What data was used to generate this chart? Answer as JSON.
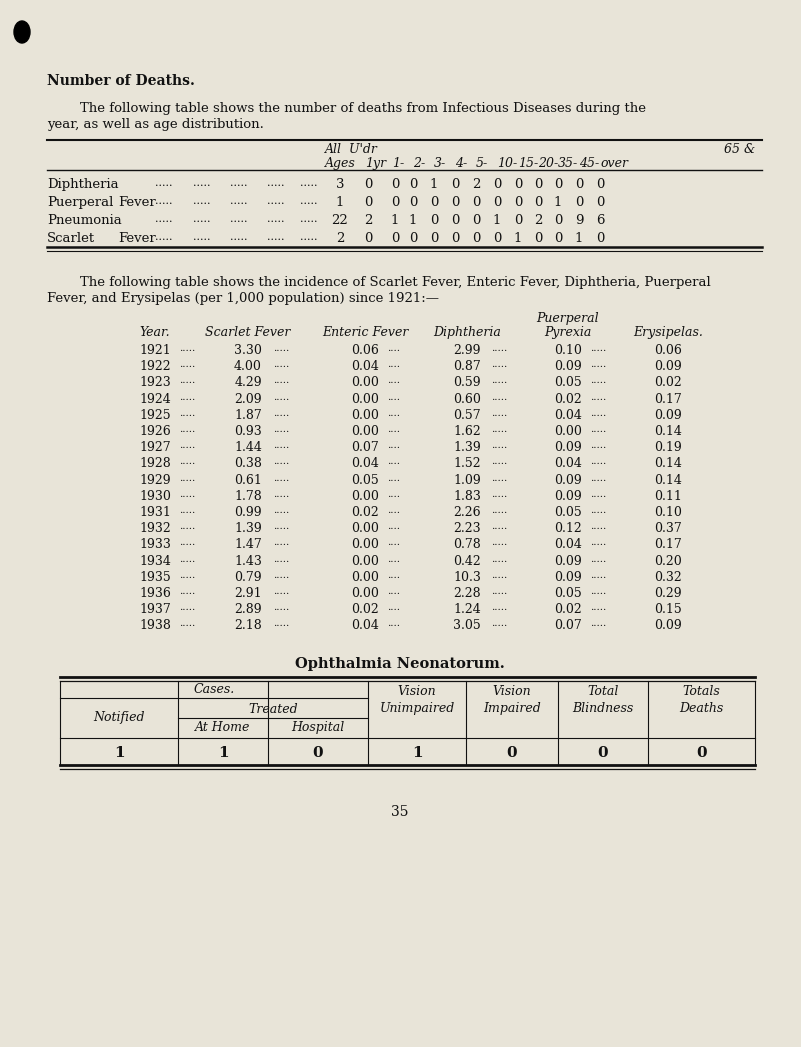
{
  "bg_color": "#e8e4d8",
  "title": "Number of Deaths.",
  "page_number": "35",
  "para1_line1": "The following table shows the number of deaths from Infectious Diseases during the",
  "para1_line2": "year, as well as age distribution.",
  "table1": {
    "rows": [
      {
        "label": "Diphtheria",
        "values": [
          3,
          0,
          0,
          0,
          1,
          0,
          2,
          0,
          0,
          0,
          0,
          0,
          0
        ]
      },
      {
        "label": "Puerperal Fever",
        "values": [
          1,
          0,
          0,
          0,
          0,
          0,
          0,
          0,
          0,
          0,
          1,
          0,
          0
        ]
      },
      {
        "label": "Pneumonia",
        "values": [
          22,
          2,
          1,
          1,
          0,
          0,
          0,
          1,
          0,
          2,
          0,
          9,
          6
        ]
      },
      {
        "label": "Scarlet Fever",
        "values": [
          2,
          0,
          0,
          0,
          0,
          0,
          0,
          0,
          1,
          0,
          0,
          1,
          0
        ]
      }
    ]
  },
  "para2_line1": "The following table shows the incidence of Scarlet Fever, Enteric Fever, Diphtheria, Puerperal",
  "para2_line2": "Fever, and Erysipelas (per 1,000 population) since 1921:—",
  "table2_data": [
    [
      1921,
      3.3,
      0.06,
      2.99,
      0.1,
      0.06
    ],
    [
      1922,
      4.0,
      0.04,
      0.87,
      0.09,
      0.09
    ],
    [
      1923,
      4.29,
      0.0,
      0.59,
      0.05,
      0.02
    ],
    [
      1924,
      2.09,
      0.0,
      0.6,
      0.02,
      0.17
    ],
    [
      1925,
      1.87,
      0.0,
      0.57,
      0.04,
      0.09
    ],
    [
      1926,
      0.93,
      0.0,
      1.62,
      0.0,
      0.14
    ],
    [
      1927,
      1.44,
      0.07,
      1.39,
      0.09,
      0.19
    ],
    [
      1928,
      0.38,
      0.04,
      1.52,
      0.04,
      0.14
    ],
    [
      1929,
      0.61,
      0.05,
      1.09,
      0.09,
      0.14
    ],
    [
      1930,
      1.78,
      0.0,
      1.83,
      0.09,
      0.11
    ],
    [
      1931,
      0.99,
      0.02,
      2.26,
      0.05,
      0.1
    ],
    [
      1932,
      1.39,
      0.0,
      2.23,
      0.12,
      0.37
    ],
    [
      1933,
      1.47,
      0.0,
      0.78,
      0.04,
      0.17
    ],
    [
      1934,
      1.43,
      0.0,
      0.42,
      0.09,
      0.2
    ],
    [
      1935,
      0.79,
      0.0,
      10.3,
      0.09,
      0.32
    ],
    [
      1936,
      2.91,
      0.0,
      2.28,
      0.05,
      0.29
    ],
    [
      1937,
      2.89,
      0.02,
      1.24,
      0.02,
      0.15
    ],
    [
      1938,
      2.18,
      0.04,
      3.05,
      0.07,
      0.09
    ]
  ],
  "ophthal_title": "Ophthalmia Neonatorum.",
  "ophthal_data": [
    1,
    1,
    0,
    1,
    0,
    0,
    0
  ],
  "dot_color": "#111111",
  "line_color": "#111111",
  "text_color": "#111111"
}
